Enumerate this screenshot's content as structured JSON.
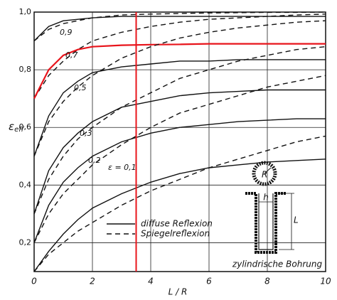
{
  "chart_data": {
    "type": "line",
    "xlabel": "L / R",
    "ylabel": "ε",
    "ylabel_sub": "eff",
    "xlim": [
      0,
      10
    ],
    "ylim": [
      0.1,
      1.0
    ],
    "xticks": [
      0,
      2,
      4,
      6,
      8,
      10
    ],
    "yticks": [
      {
        "value": 0.2,
        "label": "0,2"
      },
      {
        "value": 0.4,
        "label": "0,4"
      },
      {
        "value": 0.6,
        "label": "0,6"
      },
      {
        "value": 0.8,
        "label": "0,8"
      },
      {
        "value": 1.0,
        "label": "1,0"
      }
    ],
    "grid": true,
    "x": [
      0,
      0.5,
      1,
      1.5,
      2,
      3,
      4,
      5,
      6,
      7,
      8,
      9,
      10
    ],
    "legend": [
      {
        "name": "diffuse Reflexion",
        "dashed": false
      },
      {
        "name": "Spiegelreflexion",
        "dashed": true
      }
    ],
    "series": [
      {
        "label": "0,9",
        "color": "#111111",
        "diffuse": [
          0.9,
          0.95,
          0.97,
          0.975,
          0.98,
          0.985,
          0.985,
          0.985,
          0.985,
          0.985,
          0.985,
          0.985,
          0.985
        ],
        "specular": [
          0.9,
          0.94,
          0.96,
          0.97,
          0.98,
          0.99,
          0.993,
          0.995,
          0.997,
          0.998,
          0.999,
          0.999,
          1.0
        ]
      },
      {
        "label": "0,7",
        "color": "#e8141b",
        "diffuse": [
          0.7,
          0.8,
          0.85,
          0.87,
          0.88,
          0.885,
          0.887,
          0.888,
          0.89,
          0.89,
          0.89,
          0.89,
          0.89
        ],
        "specular": [
          0.7,
          0.78,
          0.83,
          0.87,
          0.9,
          0.93,
          0.95,
          0.965,
          0.975,
          0.98,
          0.985,
          0.99,
          0.993
        ]
      },
      {
        "label": "0,5",
        "color": "#111111",
        "diffuse": [
          0.5,
          0.64,
          0.72,
          0.76,
          0.79,
          0.81,
          0.82,
          0.83,
          0.83,
          0.835,
          0.835,
          0.835,
          0.835
        ],
        "specular": [
          0.5,
          0.62,
          0.69,
          0.74,
          0.78,
          0.84,
          0.88,
          0.91,
          0.93,
          0.945,
          0.955,
          0.965,
          0.97
        ]
      },
      {
        "label": "0,3",
        "color": "#111111",
        "diffuse": [
          0.3,
          0.45,
          0.53,
          0.58,
          0.62,
          0.67,
          0.69,
          0.71,
          0.72,
          0.725,
          0.73,
          0.73,
          0.73
        ],
        "specular": [
          0.3,
          0.42,
          0.5,
          0.56,
          0.6,
          0.67,
          0.72,
          0.77,
          0.8,
          0.83,
          0.85,
          0.87,
          0.88
        ]
      },
      {
        "label": "0,2",
        "color": "#111111",
        "diffuse": [
          0.2,
          0.33,
          0.41,
          0.46,
          0.5,
          0.55,
          0.58,
          0.6,
          0.61,
          0.62,
          0.625,
          0.63,
          0.63
        ],
        "specular": [
          0.2,
          0.3,
          0.37,
          0.42,
          0.47,
          0.54,
          0.6,
          0.65,
          0.68,
          0.71,
          0.74,
          0.76,
          0.78
        ]
      },
      {
        "label": "ε = 0,1",
        "color": "#111111",
        "diffuse": [
          0.1,
          0.17,
          0.23,
          0.28,
          0.32,
          0.37,
          0.41,
          0.44,
          0.46,
          0.47,
          0.48,
          0.485,
          0.49
        ],
        "specular": [
          0.1,
          0.16,
          0.2,
          0.24,
          0.27,
          0.33,
          0.38,
          0.42,
          0.46,
          0.49,
          0.52,
          0.55,
          0.57
        ]
      }
    ],
    "reference_x": 3.5,
    "reference_color": "#e8141b",
    "inset": {
      "caption": "zylindrische Bohrung",
      "radius_label": "R",
      "width_label": "h",
      "length_label": "L"
    }
  }
}
